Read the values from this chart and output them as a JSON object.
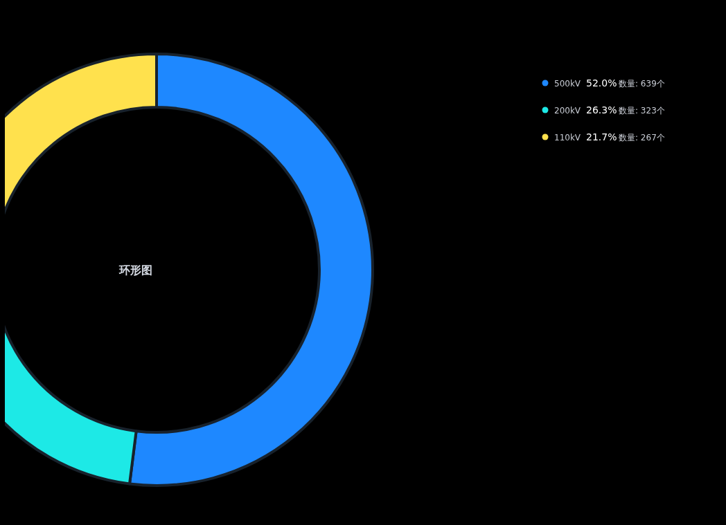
{
  "chart_data": {
    "type": "donut",
    "title": "环形图",
    "categories": [
      "500kV",
      "200kV",
      "110kV"
    ],
    "values": [
      639,
      323,
      267
    ],
    "colors": [
      "#1e88ff",
      "#1de9e6",
      "#ffe14d"
    ],
    "value_labels": [
      "52.0% 数量: 639个",
      "26.3% 数量: 323个",
      "21.7% 数量: 267个"
    ],
    "legend": "top right"
  }
}
